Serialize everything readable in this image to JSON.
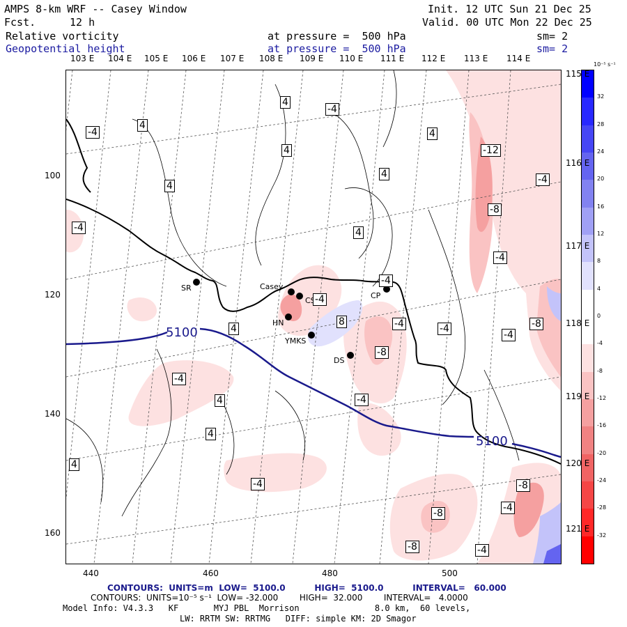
{
  "header": {
    "model_line": "AMPS 8-km WRF -- Casey Window",
    "fcst_label": "Fcst.",
    "fcst_value": "12 h",
    "init_line": "Init. 12 UTC Sun 21 Dec 25",
    "valid_line": "Valid. 00 UTC Mon 22 Dec 25",
    "field1": {
      "name": "Relative vorticity",
      "level": "at pressure =  500 hPa",
      "smooth": "sm= 2"
    },
    "field2": {
      "name": "Geopotential height",
      "level": "at pressure =  500 hPa",
      "smooth": "sm= 2"
    }
  },
  "lon_labels_top": [
    "103 E",
    "104 E",
    "105 E",
    "106 E",
    "107 E",
    "108 E",
    "109 E",
    "110 E",
    "111 E",
    "112 E",
    "113 E",
    "114 E"
  ],
  "lon_labels_right": [
    "115 E",
    "116 E",
    "117 E",
    "118 E",
    "119 E",
    "120 E",
    "121 E"
  ],
  "x_ticks": [
    "440",
    "460",
    "480",
    "500"
  ],
  "y_ticks": [
    "100",
    "120",
    "140",
    "160"
  ],
  "stations": [
    {
      "label": "SR"
    },
    {
      "label": "Casey"
    },
    {
      "label": "CS"
    },
    {
      "label": "HN"
    },
    {
      "label": "YMKS"
    },
    {
      "label": "DS"
    },
    {
      "label": "CP"
    }
  ],
  "height_contour_label": "5100",
  "vort_labels": {
    "pos": "4",
    "neg4": "-4",
    "neg8": "-8",
    "neg12": "-12",
    "pos8": "8"
  },
  "colorbar": {
    "units": "10⁻⁵ s⁻¹",
    "ticks": [
      "32",
      "28",
      "24",
      "20",
      "16",
      "12",
      "8",
      "4",
      "0",
      "-4",
      "-8",
      "-12",
      "-16",
      "-20",
      "-24",
      "-28",
      "-32"
    ],
    "colors": [
      "#0000ff",
      "#2828ff",
      "#4646f5",
      "#6464f0",
      "#8282f0",
      "#a0a0f5",
      "#c3c3fa",
      "#e1e1fd",
      "#ffffff",
      "#ffffff",
      "#fde1e1",
      "#fac3c3",
      "#f5a0a0",
      "#f08282",
      "#f06464",
      "#f54646",
      "#ff2828",
      "#ff0000"
    ]
  },
  "footer": {
    "line1": "CONTOURS:  UNITS=m  LOW=  5100.0          HIGH=  5100.0          INTERVAL=   60.000",
    "line2": "CONTOURS:  UNITS=10⁻⁵ s⁻¹  LOW= -32.000        HIGH=  32.000        INTERVAL=   4.0000",
    "line3": "Model Info: V4.3.3   KF       MYJ PBL  Morrison               8.0 km,  60 levels,",
    "line4": "LW: RRTM SW: RRTMG   DIFF: simple KM: 2D Smagor"
  }
}
